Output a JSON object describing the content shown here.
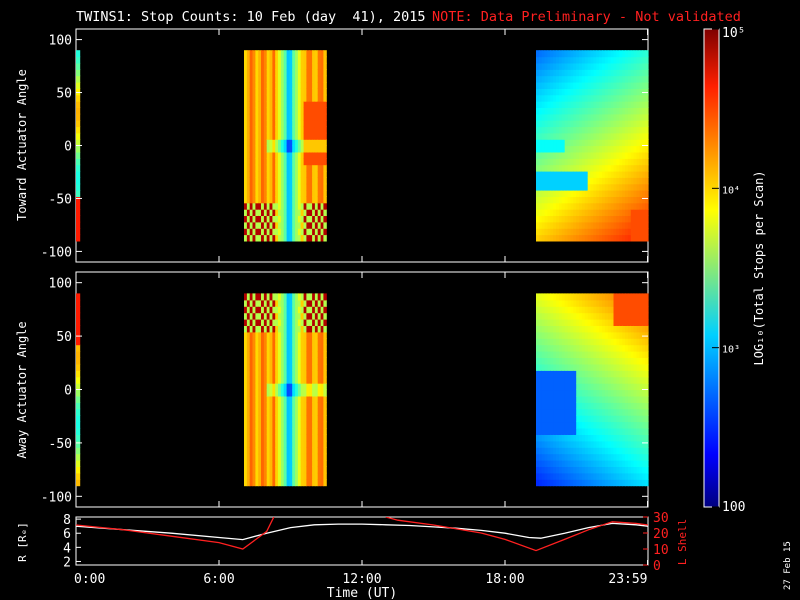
{
  "header": {
    "title": "TWINS1: Stop Counts: 10 Feb (day  41), 2015",
    "note": "NOTE: Data Preliminary - Not validated",
    "note_color": "#ff2020"
  },
  "side_stamp": "27 Feb 15",
  "chart_data": [
    {
      "type": "heatmap",
      "panel": "toward",
      "ylabel": "Toward Actuator Angle",
      "ylim": [
        -110,
        110
      ],
      "yticks": [
        "100",
        "50",
        "0",
        "-50",
        "-100"
      ],
      "ytick_values": [
        100,
        50,
        0,
        -50,
        -100
      ],
      "xlim": [
        0,
        24
      ],
      "angle_range": [
        -90,
        90
      ],
      "data_intervals_hours": [
        [
          0.0,
          0.15
        ],
        [
          7.05,
          10.5
        ],
        [
          19.3,
          24.0
        ]
      ],
      "color_scale": "log",
      "value_range": [
        100,
        100000
      ]
    },
    {
      "type": "heatmap",
      "panel": "away",
      "ylabel": "Away Actuator Angle",
      "ylim": [
        -110,
        110
      ],
      "yticks": [
        "100",
        "50",
        "0",
        "-50",
        "-100"
      ],
      "ytick_values": [
        100,
        50,
        0,
        -50,
        -100
      ],
      "xlim": [
        0,
        24
      ],
      "angle_range": [
        -90,
        90
      ],
      "data_intervals_hours": [
        [
          0.0,
          0.15
        ],
        [
          7.05,
          10.5
        ],
        [
          19.3,
          24.0
        ]
      ],
      "color_scale": "log",
      "value_range": [
        100,
        100000
      ]
    },
    {
      "type": "line",
      "panel": "orbit",
      "ylabel_left": "R [Rₑ]",
      "ylabel_right": "L Shell",
      "left_ticks": [
        "8",
        "6",
        "4",
        "2"
      ],
      "left_tick_values": [
        8,
        6,
        4,
        2
      ],
      "left_ylim": [
        1.5,
        8.3
      ],
      "right_ticks": [
        "30",
        "20",
        "10",
        "0"
      ],
      "right_tick_values": [
        30,
        20,
        10,
        0
      ],
      "right_ylim": [
        0,
        30
      ],
      "xlabel": "Time (UT)",
      "xticks": [
        "0:00",
        "6:00",
        "12:00",
        "18:00",
        "23:59"
      ],
      "xtick_values": [
        0,
        6,
        12,
        18,
        23.98
      ],
      "series": [
        {
          "axis": "left",
          "color": "#ffffff",
          "x": [
            0,
            2,
            4,
            6,
            7.0,
            8.0,
            9.0,
            10.0,
            11.0,
            12.0,
            13.0,
            14.0,
            15.0,
            16.0,
            17.0,
            18.0,
            19.0,
            19.5,
            20.5,
            21.5,
            22.5,
            23.5,
            24
          ],
          "y": [
            7.0,
            6.5,
            6.0,
            5.4,
            5.1,
            6.0,
            6.8,
            7.2,
            7.3,
            7.3,
            7.2,
            7.1,
            6.9,
            6.7,
            6.4,
            6.0,
            5.4,
            5.3,
            6.0,
            6.8,
            7.4,
            7.2,
            7.0
          ]
        },
        {
          "axis": "right",
          "color": "#ff2020",
          "segments": [
            {
              "x": [
                0,
                2,
                4,
                6,
                7.0,
                8.0,
                8.3
              ],
              "y": [
                25,
                22,
                18,
                14,
                10,
                21,
                30
              ]
            },
            {
              "x": [
                13.0,
                13.5,
                15.0,
                17.0,
                18.0,
                19.3,
                20.5,
                21.5,
                22.5,
                23.5,
                24
              ],
              "y": [
                30,
                28,
                25,
                20,
                16,
                9,
                16,
                22,
                27,
                26,
                25
              ]
            }
          ]
        }
      ]
    },
    {
      "type": "colorbar",
      "ylabel": "LOG₁₀(Total Stops per Scan)",
      "scale": "log",
      "range": [
        100,
        100000
      ],
      "tick_labels": [
        "10⁵",
        "10⁴",
        "10³",
        "100"
      ],
      "tick_values": [
        100000,
        10000,
        1000,
        100
      ]
    }
  ]
}
